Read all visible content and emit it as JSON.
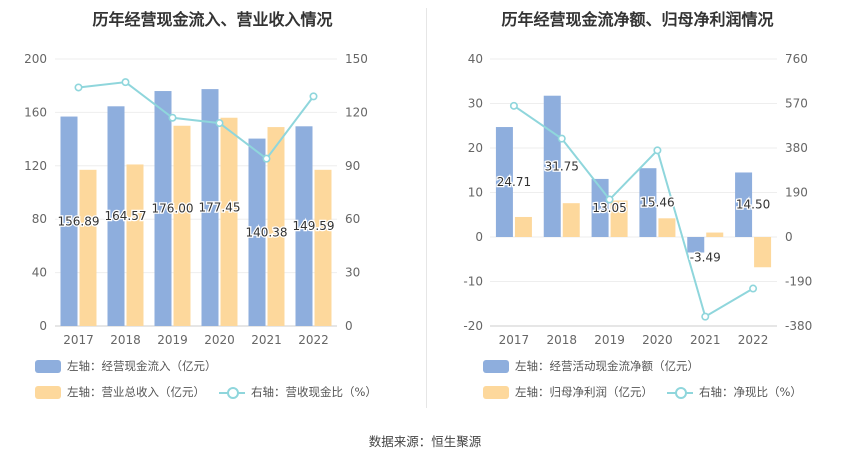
{
  "source_label": "数据来源：恒生聚源",
  "colors": {
    "bar_blue": "#8eaedd",
    "bar_orange": "#fdd89c",
    "line_cyan": "#8fd6dc",
    "grid": "#eeeeee",
    "axis_text": "#666666"
  },
  "chart_data": [
    {
      "type": "bar",
      "title": "历年经营现金流入、营业收入情况",
      "categories": [
        "2017",
        "2018",
        "2019",
        "2020",
        "2021",
        "2022"
      ],
      "left_axis": {
        "ylim": [
          0,
          200
        ],
        "ticks": [
          0,
          40,
          80,
          120,
          160,
          200
        ]
      },
      "right_axis": {
        "ylim": [
          0,
          150
        ],
        "ticks": [
          0,
          30,
          60,
          90,
          120,
          150
        ]
      },
      "series": [
        {
          "name": "左轴：经营现金流入（亿元）",
          "type": "bar",
          "axis": "left",
          "color": "#8eaedd",
          "values": [
            156.89,
            164.57,
            176.0,
            177.45,
            140.38,
            149.59
          ],
          "labels": [
            "156.89",
            "164.57",
            "176.00",
            "177.45",
            "140.38",
            "149.59"
          ]
        },
        {
          "name": "左轴：营业总收入（亿元）",
          "type": "bar",
          "axis": "left",
          "color": "#fdd89c",
          "values": [
            117,
            121,
            150,
            156,
            149,
            117
          ]
        },
        {
          "name": "右轴：营收现金比（%）",
          "type": "line",
          "axis": "right",
          "color": "#8fd6dc",
          "values": [
            134,
            137,
            117,
            114,
            94,
            129
          ]
        }
      ],
      "grid": true,
      "legend_position": "bottom"
    },
    {
      "type": "bar",
      "title": "历年经营现金流净额、归母净利润情况",
      "categories": [
        "2017",
        "2018",
        "2019",
        "2020",
        "2021",
        "2022"
      ],
      "left_axis": {
        "ylim": [
          -20,
          40
        ],
        "ticks": [
          -20,
          -10,
          0,
          10,
          20,
          30,
          40
        ]
      },
      "right_axis": {
        "ylim": [
          -380,
          760
        ],
        "ticks": [
          -380,
          -190,
          0,
          190,
          380,
          570,
          760
        ]
      },
      "series": [
        {
          "name": "左轴：经营活动现金流净额（亿元）",
          "type": "bar",
          "axis": "left",
          "color": "#8eaedd",
          "values": [
            24.71,
            31.75,
            13.05,
            15.46,
            -3.49,
            14.5
          ],
          "labels": [
            "24.71",
            "31.75",
            "13.05",
            "15.46",
            "-3.49",
            "14.50"
          ]
        },
        {
          "name": "左轴：归母净利润（亿元）",
          "type": "bar",
          "axis": "left",
          "color": "#fdd89c",
          "values": [
            4.5,
            7.6,
            8.2,
            4.2,
            1.0,
            -6.8
          ]
        },
        {
          "name": "右轴：净现比（%）",
          "type": "line",
          "axis": "right",
          "color": "#8fd6dc",
          "values": [
            560,
            420,
            160,
            370,
            -340,
            -220
          ]
        }
      ],
      "grid": true,
      "legend_position": "bottom"
    }
  ]
}
